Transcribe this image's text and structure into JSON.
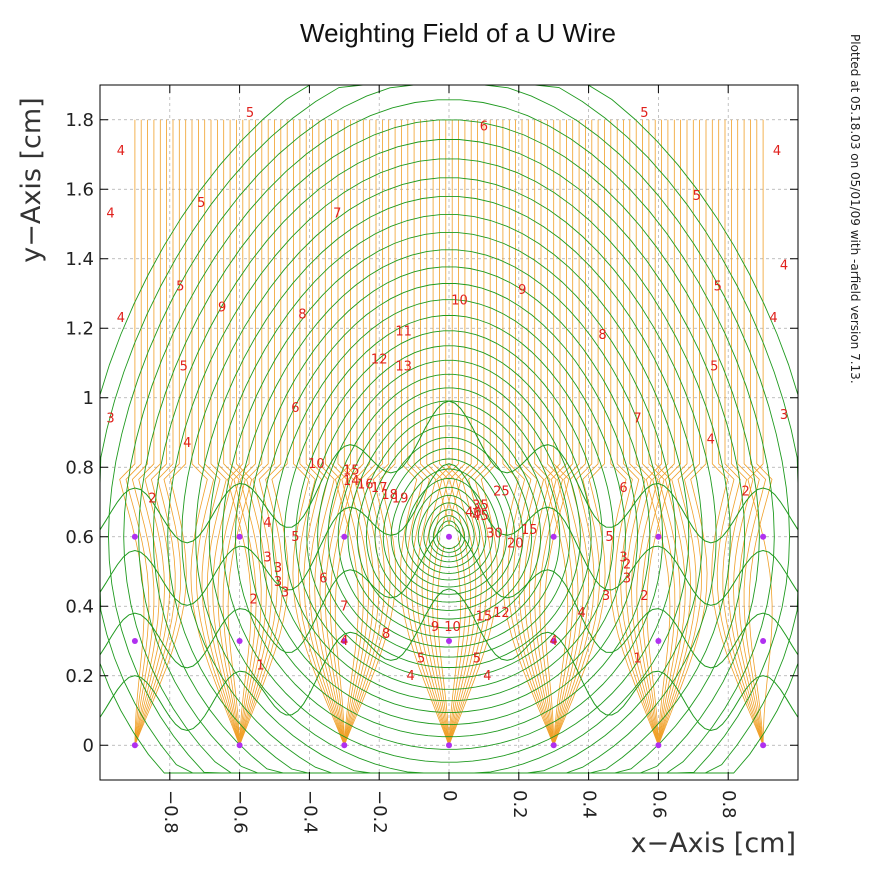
{
  "chart_data": {
    "type": "line",
    "title": "Weighting Field of a U Wire",
    "xlabel": "x−Axis [cm]",
    "ylabel": "y−Axis [cm]",
    "side_note": "Plotted at 05.18.03 on 05/01/09 with -arfield version 7.13.",
    "xlim": [
      -1.0,
      1.0
    ],
    "ylim": [
      -0.1,
      1.9
    ],
    "grid": true,
    "x_ticks": [
      {
        "value": -0.8,
        "label": "−0.8"
      },
      {
        "value": -0.6,
        "label": "−0.6"
      },
      {
        "value": -0.4,
        "label": "−0.4"
      },
      {
        "value": -0.2,
        "label": "−0.2"
      },
      {
        "value": 0,
        "label": "0"
      },
      {
        "value": 0.2,
        "label": "0.2"
      },
      {
        "value": 0.4,
        "label": "0.4"
      },
      {
        "value": 0.6,
        "label": "0.6"
      },
      {
        "value": 0.8,
        "label": "0.8"
      }
    ],
    "y_ticks": [
      {
        "value": 0,
        "label": "0"
      },
      {
        "value": 0.2,
        "label": "0.2"
      },
      {
        "value": 0.4,
        "label": "0.4"
      },
      {
        "value": 0.6,
        "label": "0.6"
      },
      {
        "value": 0.8,
        "label": "0.8"
      },
      {
        "value": 1.0,
        "label": "1"
      },
      {
        "value": 1.2,
        "label": "1.2"
      },
      {
        "value": 1.4,
        "label": "1.4"
      },
      {
        "value": 1.6,
        "label": "1.6"
      },
      {
        "value": 1.8,
        "label": "1.8"
      }
    ],
    "wires": [
      {
        "x": -0.9,
        "y": 0
      },
      {
        "x": -0.6,
        "y": 0
      },
      {
        "x": -0.3,
        "y": 0
      },
      {
        "x": 0,
        "y": 0
      },
      {
        "x": 0.3,
        "y": 0
      },
      {
        "x": 0.6,
        "y": 0
      },
      {
        "x": 0.9,
        "y": 0
      },
      {
        "x": -0.9,
        "y": 0.3
      },
      {
        "x": -0.6,
        "y": 0.3
      },
      {
        "x": -0.3,
        "y": 0.3
      },
      {
        "x": 0,
        "y": 0.3
      },
      {
        "x": 0.3,
        "y": 0.3
      },
      {
        "x": 0.6,
        "y": 0.3
      },
      {
        "x": 0.9,
        "y": 0.3
      },
      {
        "x": -0.9,
        "y": 0.6
      },
      {
        "x": -0.6,
        "y": 0.6
      },
      {
        "x": -0.3,
        "y": 0.6
      },
      {
        "x": 0,
        "y": 0.6
      },
      {
        "x": 0.3,
        "y": 0.6
      },
      {
        "x": 0.6,
        "y": 0.6
      },
      {
        "x": 0.9,
        "y": 0.6
      }
    ],
    "field_line_top_y": 1.8,
    "field_line_span": [
      -0.9,
      0.9
    ],
    "field_line_count": 100,
    "contour_labels": [
      {
        "x": -0.57,
        "y": 1.82,
        "text": "5"
      },
      {
        "x": 0.1,
        "y": 1.78,
        "text": "6"
      },
      {
        "x": 0.56,
        "y": 1.82,
        "text": "5"
      },
      {
        "x": -0.94,
        "y": 1.71,
        "text": "4"
      },
      {
        "x": 0.94,
        "y": 1.71,
        "text": "4"
      },
      {
        "x": -0.71,
        "y": 1.56,
        "text": "5"
      },
      {
        "x": 0.71,
        "y": 1.58,
        "text": "5"
      },
      {
        "x": -0.32,
        "y": 1.53,
        "text": "7"
      },
      {
        "x": -0.97,
        "y": 1.53,
        "text": "4"
      },
      {
        "x": 0.96,
        "y": 1.38,
        "text": "4"
      },
      {
        "x": -0.77,
        "y": 1.32,
        "text": "5"
      },
      {
        "x": 0.77,
        "y": 1.32,
        "text": "5"
      },
      {
        "x": 0.21,
        "y": 1.31,
        "text": "9"
      },
      {
        "x": -0.65,
        "y": 1.26,
        "text": "9"
      },
      {
        "x": 0.03,
        "y": 1.28,
        "text": "10"
      },
      {
        "x": -0.42,
        "y": 1.24,
        "text": "8"
      },
      {
        "x": -0.94,
        "y": 1.23,
        "text": "4"
      },
      {
        "x": 0.93,
        "y": 1.23,
        "text": "4"
      },
      {
        "x": 0.44,
        "y": 1.18,
        "text": "8"
      },
      {
        "x": -0.13,
        "y": 1.19,
        "text": "11"
      },
      {
        "x": -0.2,
        "y": 1.11,
        "text": "12"
      },
      {
        "x": -0.13,
        "y": 1.09,
        "text": "13"
      },
      {
        "x": -0.76,
        "y": 1.09,
        "text": "5"
      },
      {
        "x": 0.76,
        "y": 1.09,
        "text": "5"
      },
      {
        "x": -0.44,
        "y": 0.97,
        "text": "6"
      },
      {
        "x": 0.54,
        "y": 0.94,
        "text": "7"
      },
      {
        "x": -0.97,
        "y": 0.94,
        "text": "3"
      },
      {
        "x": 0.96,
        "y": 0.95,
        "text": "3"
      },
      {
        "x": -0.75,
        "y": 0.87,
        "text": "4"
      },
      {
        "x": 0.75,
        "y": 0.88,
        "text": "4"
      },
      {
        "x": -0.38,
        "y": 0.81,
        "text": "10"
      },
      {
        "x": -0.28,
        "y": 0.79,
        "text": "15"
      },
      {
        "x": -0.28,
        "y": 0.76,
        "text": "14"
      },
      {
        "x": -0.24,
        "y": 0.75,
        "text": "16"
      },
      {
        "x": -0.2,
        "y": 0.74,
        "text": "17"
      },
      {
        "x": -0.17,
        "y": 0.72,
        "text": "18"
      },
      {
        "x": -0.14,
        "y": 0.71,
        "text": "19"
      },
      {
        "x": 0.15,
        "y": 0.73,
        "text": "25"
      },
      {
        "x": 0.5,
        "y": 0.74,
        "text": "6"
      },
      {
        "x": 0.85,
        "y": 0.73,
        "text": "2"
      },
      {
        "x": -0.85,
        "y": 0.71,
        "text": "2"
      },
      {
        "x": 0.09,
        "y": 0.69,
        "text": "35"
      },
      {
        "x": 0.07,
        "y": 0.67,
        "text": "40"
      },
      {
        "x": 0.09,
        "y": 0.66,
        "text": "45"
      },
      {
        "x": 0.23,
        "y": 0.62,
        "text": "15"
      },
      {
        "x": 0.13,
        "y": 0.61,
        "text": "30"
      },
      {
        "x": 0.19,
        "y": 0.58,
        "text": "20"
      },
      {
        "x": -0.52,
        "y": 0.64,
        "text": "4"
      },
      {
        "x": -0.44,
        "y": 0.6,
        "text": "5"
      },
      {
        "x": 0.46,
        "y": 0.6,
        "text": "5"
      },
      {
        "x": -0.52,
        "y": 0.54,
        "text": "3"
      },
      {
        "x": -0.49,
        "y": 0.51,
        "text": "3"
      },
      {
        "x": 0.5,
        "y": 0.54,
        "text": "3"
      },
      {
        "x": 0.51,
        "y": 0.52,
        "text": "2"
      },
      {
        "x": -0.36,
        "y": 0.48,
        "text": "6"
      },
      {
        "x": -0.49,
        "y": 0.47,
        "text": "3"
      },
      {
        "x": -0.47,
        "y": 0.44,
        "text": "3"
      },
      {
        "x": 0.51,
        "y": 0.48,
        "text": "3"
      },
      {
        "x": -0.56,
        "y": 0.42,
        "text": "2"
      },
      {
        "x": 0.45,
        "y": 0.43,
        "text": "3"
      },
      {
        "x": 0.56,
        "y": 0.43,
        "text": "2"
      },
      {
        "x": -0.3,
        "y": 0.4,
        "text": "7"
      },
      {
        "x": 0.38,
        "y": 0.38,
        "text": "4"
      },
      {
        "x": 0.1,
        "y": 0.37,
        "text": "15"
      },
      {
        "x": 0.15,
        "y": 0.38,
        "text": "12"
      },
      {
        "x": -0.18,
        "y": 0.32,
        "text": "8"
      },
      {
        "x": -0.04,
        "y": 0.34,
        "text": "9"
      },
      {
        "x": 0.01,
        "y": 0.34,
        "text": "10"
      },
      {
        "x": -0.3,
        "y": 0.3,
        "text": "4"
      },
      {
        "x": 0.3,
        "y": 0.3,
        "text": "4"
      },
      {
        "x": -0.08,
        "y": 0.25,
        "text": "5"
      },
      {
        "x": 0.08,
        "y": 0.25,
        "text": "5"
      },
      {
        "x": -0.11,
        "y": 0.2,
        "text": "4"
      },
      {
        "x": 0.11,
        "y": 0.2,
        "text": "4"
      },
      {
        "x": -0.54,
        "y": 0.23,
        "text": "1"
      },
      {
        "x": 0.54,
        "y": 0.25,
        "text": "1"
      }
    ],
    "colors": {
      "field_lines": "#f0a028",
      "equipotentials": "#1f9a1f",
      "contour_labels": "#e0201c",
      "wires": "#b030f0",
      "grid": "#aaaaaa",
      "axes": "#000000",
      "text": "#222222"
    }
  }
}
